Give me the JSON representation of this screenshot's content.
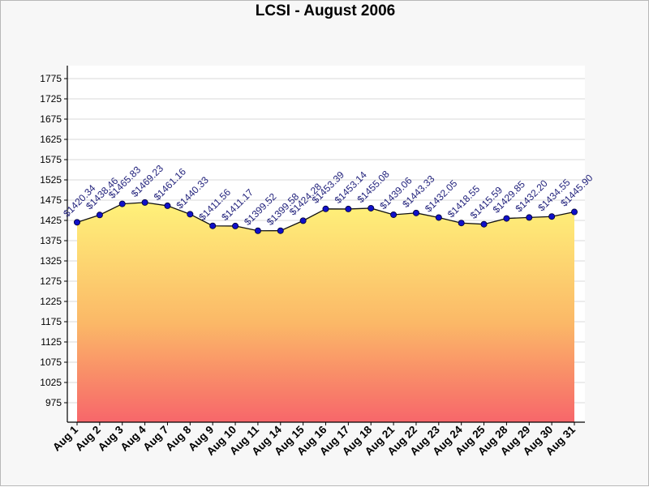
{
  "chart_data": {
    "type": "area",
    "title": "LCSI - August 2006",
    "xlabel": "",
    "ylabel": "",
    "ylim": [
      925,
      1800
    ],
    "y_ticks": [
      975,
      1025,
      1075,
      1125,
      1175,
      1225,
      1275,
      1325,
      1375,
      1425,
      1475,
      1525,
      1575,
      1625,
      1675,
      1725,
      1775
    ],
    "grid": true,
    "legend": "none",
    "categories": [
      "Aug 1",
      "Aug 2",
      "Aug 3",
      "Aug 4",
      "Aug 7",
      "Aug 8",
      "Aug 9",
      "Aug 10",
      "Aug 11",
      "Aug 14",
      "Aug 15",
      "Aug 16",
      "Aug 17",
      "Aug 18",
      "Aug 21",
      "Aug 22",
      "Aug 23",
      "Aug 24",
      "Aug 25",
      "Aug 28",
      "Aug 29",
      "Aug 30",
      "Aug 31"
    ],
    "values": [
      1420.34,
      1438.46,
      1465.83,
      1469.23,
      1461.16,
      1440.33,
      1411.56,
      1411.17,
      1399.52,
      1399.58,
      1424.28,
      1453.39,
      1453.14,
      1455.08,
      1439.06,
      1443.33,
      1432.05,
      1418.55,
      1415.59,
      1429.85,
      1432.2,
      1434.55,
      1445.9
    ],
    "data_labels": [
      "$1420.34",
      "$1438.46",
      "$1465.83",
      "$1469.23",
      "$1461.16",
      "$1440.33",
      "$1411.56",
      "$1411.17",
      "$1399.52",
      "$1399.58",
      "$1424.28",
      "$1453.39",
      "$1453.14",
      "$1455.08",
      "$1439.06",
      "$1443.33",
      "$1432.05",
      "$1418.55",
      "$1415.59",
      "$1429.85",
      "$1432.20",
      "$1434.55",
      "$1445.90"
    ],
    "colors": {
      "fill_top": "#fff27a",
      "fill_mid": "#fbb867",
      "fill_bottom": "#f7666a",
      "line": "#111111",
      "marker": "#1010c8",
      "label": "#1f1f7a",
      "plot_bg": "#ffffff",
      "page_bg": "#f7f7f7"
    }
  }
}
